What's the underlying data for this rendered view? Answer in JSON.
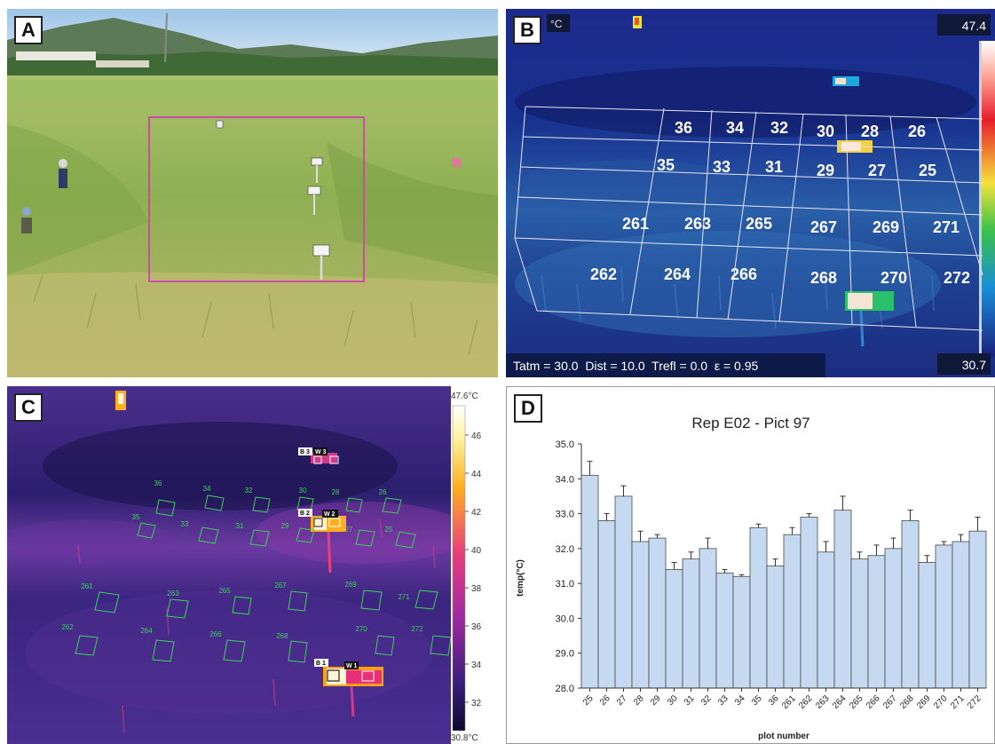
{
  "panels": {
    "a": {
      "letter": "A"
    },
    "b": {
      "letter": "B",
      "unit": "°C",
      "scale_max": "47.4",
      "scale_min": "30.7",
      "params": "Tatm = 30.0  Dist = 10.0  Trefl = 0.0  ε = 0.95",
      "plot_labels": [
        "36",
        "34",
        "32",
        "30",
        "28",
        "26",
        "35",
        "33",
        "31",
        "29",
        "27",
        "25",
        "261",
        "263",
        "265",
        "267",
        "269",
        "271",
        "262",
        "264",
        "266",
        "268",
        "270",
        "272"
      ]
    },
    "c": {
      "letter": "C",
      "scale_max": "47.6°C",
      "scale_min": "30.8°C",
      "scale_ticks": [
        "46",
        "44",
        "42",
        "40",
        "38",
        "36",
        "34",
        "32"
      ],
      "box_labels": [
        "B 3",
        "W 3",
        "B 2",
        "W 2",
        "B 1",
        "W 1"
      ],
      "plot_labels": [
        "36",
        "34",
        "32",
        "30",
        "28",
        "26",
        "35",
        "33",
        "31",
        "29",
        "27",
        "25",
        "261",
        "263",
        "265",
        "267",
        "269",
        "271",
        "262",
        "264",
        "266",
        "268",
        "270",
        "272"
      ]
    },
    "d": {
      "letter": "D"
    }
  },
  "chart_data": {
    "type": "bar",
    "title": "Rep E02 - Pict 97",
    "xlabel": "plot number",
    "ylabel": "temp(°C)",
    "ylim": [
      28.0,
      35.0
    ],
    "yticks": [
      "28.0",
      "29.0",
      "30.0",
      "31.0",
      "32.0",
      "33.0",
      "34.0",
      "35.0"
    ],
    "grid": false,
    "categories": [
      "25",
      "26",
      "27",
      "28",
      "29",
      "30",
      "31",
      "32",
      "33",
      "34",
      "35",
      "36",
      "261",
      "262",
      "263",
      "264",
      "265",
      "266",
      "267",
      "268",
      "269",
      "270",
      "271",
      "272"
    ],
    "values": [
      34.1,
      32.8,
      33.5,
      32.2,
      32.3,
      31.4,
      31.7,
      32.0,
      31.3,
      31.2,
      32.6,
      31.5,
      32.4,
      32.9,
      31.9,
      33.1,
      31.7,
      31.8,
      32.0,
      32.8,
      31.6,
      32.1,
      32.2,
      32.5
    ],
    "errors": [
      0.4,
      0.2,
      0.3,
      0.3,
      0.1,
      0.2,
      0.2,
      0.3,
      0.1,
      0.05,
      0.1,
      0.2,
      0.2,
      0.1,
      0.3,
      0.4,
      0.2,
      0.3,
      0.3,
      0.3,
      0.2,
      0.1,
      0.2,
      0.4
    ],
    "colors": {
      "bar_fill": "#c5d9f1",
      "bar_stroke": "#4a4a4a"
    }
  }
}
